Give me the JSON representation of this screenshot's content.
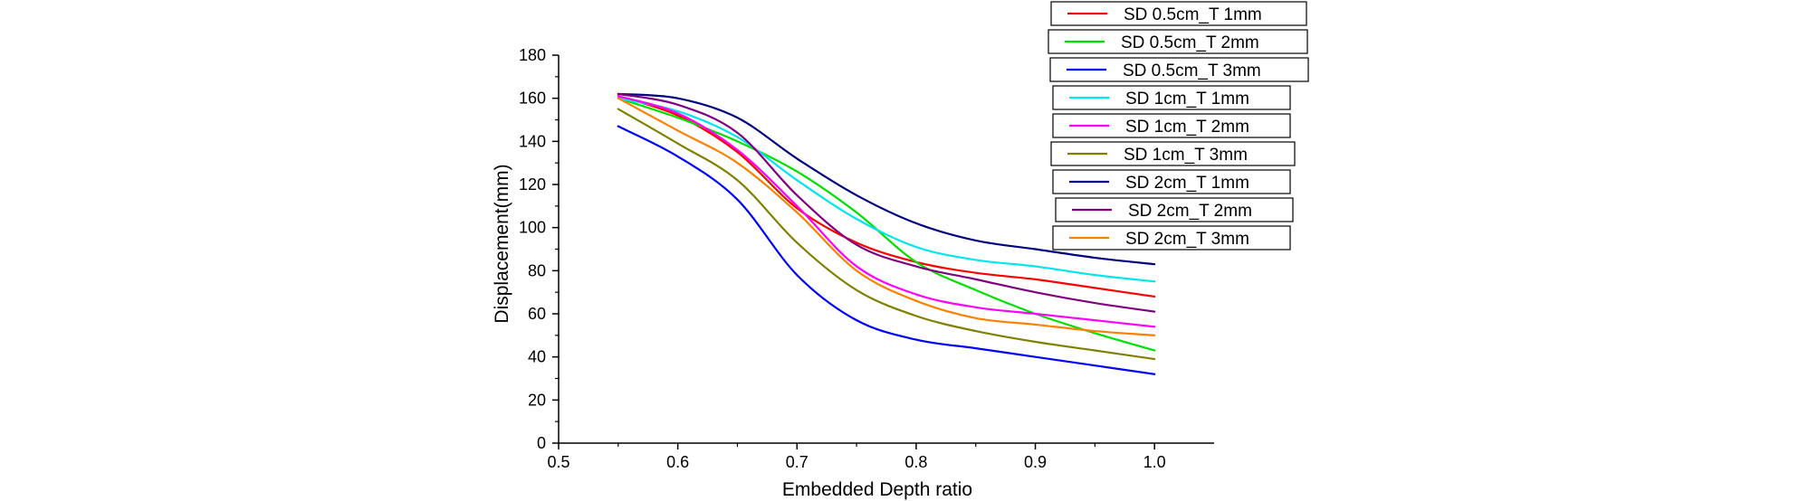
{
  "chart_data": {
    "type": "line",
    "title": "",
    "xlabel": "Embedded Depth ratio",
    "ylabel": "Displacement(mm)",
    "xlim": [
      0.5,
      1.05
    ],
    "ylim": [
      0,
      180
    ],
    "xticks": [
      0.5,
      0.6,
      0.7,
      0.8,
      0.9,
      1.0
    ],
    "xtick_labels": [
      "0.5",
      "0.6",
      "0.7",
      "0.8",
      "0.9",
      "1.0"
    ],
    "yticks": [
      0,
      20,
      40,
      60,
      80,
      100,
      120,
      140,
      160,
      180
    ],
    "ytick_labels": [
      "0",
      "20",
      "40",
      "60",
      "80",
      "100",
      "120",
      "140",
      "160",
      "180"
    ],
    "grid": false,
    "legend_position": "top-right",
    "x": [
      0.55,
      0.6,
      0.65,
      0.7,
      0.75,
      0.8,
      0.85,
      0.9,
      0.95,
      1.0
    ],
    "series": [
      {
        "name": "SD 0.5cm_T 1mm",
        "color": "#ff0000",
        "values": [
          161,
          152,
          135,
          109,
          93,
          84,
          79,
          76,
          72,
          68
        ]
      },
      {
        "name": "SD 0.5cm_T 2mm",
        "color": "#00e000",
        "values": [
          160,
          151,
          140,
          126,
          107,
          84,
          71,
          60,
          51,
          43
        ]
      },
      {
        "name": "SD 0.5cm_T 3mm",
        "color": "#0000ff",
        "values": [
          147,
          133,
          113,
          78,
          57,
          48,
          44,
          40,
          36,
          32
        ]
      },
      {
        "name": "SD 1cm_T 1mm",
        "color": "#00e5ee",
        "values": [
          160,
          154,
          142,
          122,
          104,
          91,
          85,
          82,
          78,
          75
        ]
      },
      {
        "name": "SD 1cm_T 2mm",
        "color": "#ff00ff",
        "values": [
          161,
          153,
          136,
          110,
          82,
          69,
          63,
          60,
          57,
          54
        ]
      },
      {
        "name": "SD 1cm_T 3mm",
        "color": "#808000",
        "values": [
          155,
          139,
          122,
          93,
          71,
          59,
          52,
          47,
          43,
          39
        ]
      },
      {
        "name": "SD 2cm_T 1mm",
        "color": "#000080",
        "values": [
          162,
          160,
          151,
          132,
          115,
          102,
          94,
          90,
          86,
          83
        ]
      },
      {
        "name": "SD 2cm_T 2mm",
        "color": "#800080",
        "values": [
          162,
          157,
          144,
          115,
          92,
          82,
          76,
          70,
          65,
          61
        ]
      },
      {
        "name": "SD 2cm_T 3mm",
        "color": "#ff8000",
        "values": [
          160,
          145,
          130,
          107,
          80,
          66,
          58,
          55,
          52,
          50
        ]
      }
    ]
  }
}
